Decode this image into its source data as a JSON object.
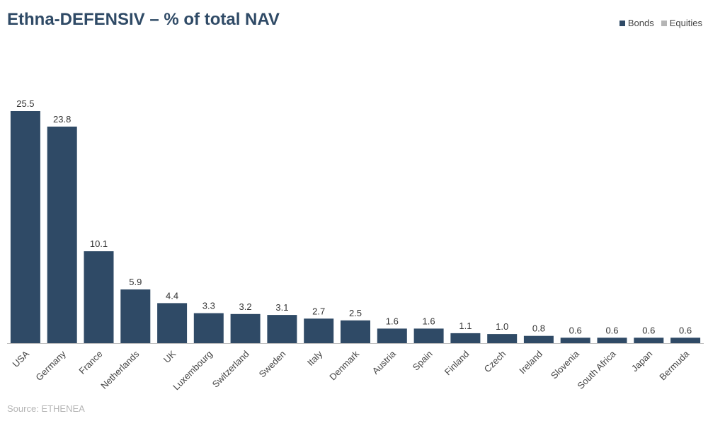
{
  "chart_data": {
    "type": "bar",
    "title": "Ethna-DEFENSIV – % of total NAV",
    "categories": [
      "USA",
      "Germany",
      "France",
      "Netherlands",
      "UK",
      "Luxembourg",
      "Switzerland",
      "Sweden",
      "Italy",
      "Denmark",
      "Austria",
      "Spain",
      "Finland",
      "Czech",
      "Ireland",
      "Slovenia",
      "South Africa",
      "Japan",
      "Bermuda"
    ],
    "series": [
      {
        "name": "Bonds",
        "values": [
          25.5,
          23.8,
          10.1,
          5.9,
          4.4,
          3.3,
          3.2,
          3.1,
          2.7,
          2.5,
          1.6,
          1.6,
          1.1,
          1.0,
          0.8,
          0.6,
          0.6,
          0.6,
          0.6
        ],
        "color": "#2f4a66"
      },
      {
        "name": "Equities",
        "values": [
          0,
          0,
          0,
          0,
          0,
          0,
          0,
          0,
          0,
          0,
          0,
          0,
          0,
          0,
          0,
          0,
          0,
          0,
          0
        ],
        "color": "#b5b5b5"
      }
    ],
    "data_labels": [
      "25.5",
      "23.8",
      "10.1",
      "5.9",
      "4.4",
      "3.3",
      "3.2",
      "3.1",
      "2.7",
      "2.5",
      "1.6",
      "1.6",
      "1.1",
      "1.0",
      "0.8",
      "0.6",
      "0.6",
      "0.6",
      "0.6"
    ],
    "xlabel": "",
    "ylabel": "",
    "ylim": [
      0,
      25.5
    ],
    "grid": false,
    "legend_position": "top-right"
  },
  "legend": {
    "bonds_label": "Bonds",
    "equities_label": "Equities",
    "bonds_color": "#2f4a66",
    "equities_color": "#b5b5b5"
  },
  "source": "Source: ETHENEA"
}
